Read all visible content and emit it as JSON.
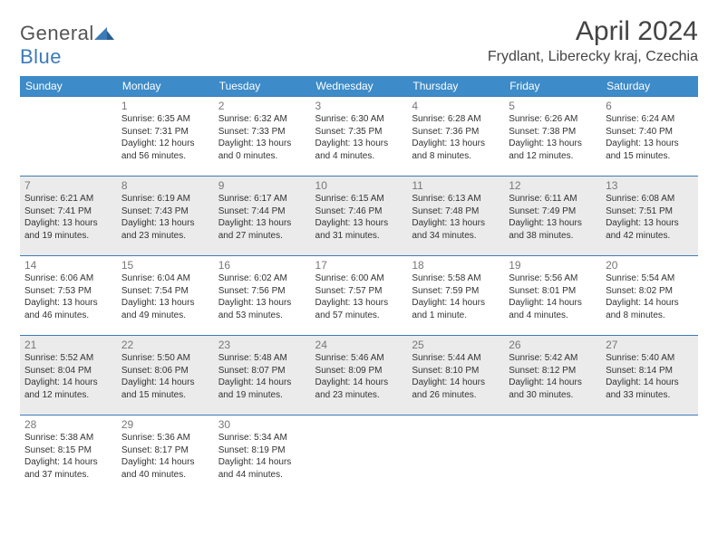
{
  "brand": {
    "part1": "General",
    "part2": "Blue"
  },
  "title": "April 2024",
  "location": "Frydlant, Liberecky kraj, Czechia",
  "colors": {
    "header_bg": "#3d8bc8",
    "header_text": "#ffffff",
    "border": "#3d7bb8",
    "alt_row_bg": "#ebebeb",
    "daynum": "#777777",
    "body_text": "#333333",
    "logo_blue": "#3d7bb8"
  },
  "dayNames": [
    "Sunday",
    "Monday",
    "Tuesday",
    "Wednesday",
    "Thursday",
    "Friday",
    "Saturday"
  ],
  "weeks": [
    [
      {
        "empty": true
      },
      {
        "num": "1",
        "sunrise": "6:35 AM",
        "sunset": "7:31 PM",
        "daylight": "12 hours and 56 minutes."
      },
      {
        "num": "2",
        "sunrise": "6:32 AM",
        "sunset": "7:33 PM",
        "daylight": "13 hours and 0 minutes."
      },
      {
        "num": "3",
        "sunrise": "6:30 AM",
        "sunset": "7:35 PM",
        "daylight": "13 hours and 4 minutes."
      },
      {
        "num": "4",
        "sunrise": "6:28 AM",
        "sunset": "7:36 PM",
        "daylight": "13 hours and 8 minutes."
      },
      {
        "num": "5",
        "sunrise": "6:26 AM",
        "sunset": "7:38 PM",
        "daylight": "13 hours and 12 minutes."
      },
      {
        "num": "6",
        "sunrise": "6:24 AM",
        "sunset": "7:40 PM",
        "daylight": "13 hours and 15 minutes."
      }
    ],
    [
      {
        "num": "7",
        "sunrise": "6:21 AM",
        "sunset": "7:41 PM",
        "daylight": "13 hours and 19 minutes."
      },
      {
        "num": "8",
        "sunrise": "6:19 AM",
        "sunset": "7:43 PM",
        "daylight": "13 hours and 23 minutes."
      },
      {
        "num": "9",
        "sunrise": "6:17 AM",
        "sunset": "7:44 PM",
        "daylight": "13 hours and 27 minutes."
      },
      {
        "num": "10",
        "sunrise": "6:15 AM",
        "sunset": "7:46 PM",
        "daylight": "13 hours and 31 minutes."
      },
      {
        "num": "11",
        "sunrise": "6:13 AM",
        "sunset": "7:48 PM",
        "daylight": "13 hours and 34 minutes."
      },
      {
        "num": "12",
        "sunrise": "6:11 AM",
        "sunset": "7:49 PM",
        "daylight": "13 hours and 38 minutes."
      },
      {
        "num": "13",
        "sunrise": "6:08 AM",
        "sunset": "7:51 PM",
        "daylight": "13 hours and 42 minutes."
      }
    ],
    [
      {
        "num": "14",
        "sunrise": "6:06 AM",
        "sunset": "7:53 PM",
        "daylight": "13 hours and 46 minutes."
      },
      {
        "num": "15",
        "sunrise": "6:04 AM",
        "sunset": "7:54 PM",
        "daylight": "13 hours and 49 minutes."
      },
      {
        "num": "16",
        "sunrise": "6:02 AM",
        "sunset": "7:56 PM",
        "daylight": "13 hours and 53 minutes."
      },
      {
        "num": "17",
        "sunrise": "6:00 AM",
        "sunset": "7:57 PM",
        "daylight": "13 hours and 57 minutes."
      },
      {
        "num": "18",
        "sunrise": "5:58 AM",
        "sunset": "7:59 PM",
        "daylight": "14 hours and 1 minute."
      },
      {
        "num": "19",
        "sunrise": "5:56 AM",
        "sunset": "8:01 PM",
        "daylight": "14 hours and 4 minutes."
      },
      {
        "num": "20",
        "sunrise": "5:54 AM",
        "sunset": "8:02 PM",
        "daylight": "14 hours and 8 minutes."
      }
    ],
    [
      {
        "num": "21",
        "sunrise": "5:52 AM",
        "sunset": "8:04 PM",
        "daylight": "14 hours and 12 minutes."
      },
      {
        "num": "22",
        "sunrise": "5:50 AM",
        "sunset": "8:06 PM",
        "daylight": "14 hours and 15 minutes."
      },
      {
        "num": "23",
        "sunrise": "5:48 AM",
        "sunset": "8:07 PM",
        "daylight": "14 hours and 19 minutes."
      },
      {
        "num": "24",
        "sunrise": "5:46 AM",
        "sunset": "8:09 PM",
        "daylight": "14 hours and 23 minutes."
      },
      {
        "num": "25",
        "sunrise": "5:44 AM",
        "sunset": "8:10 PM",
        "daylight": "14 hours and 26 minutes."
      },
      {
        "num": "26",
        "sunrise": "5:42 AM",
        "sunset": "8:12 PM",
        "daylight": "14 hours and 30 minutes."
      },
      {
        "num": "27",
        "sunrise": "5:40 AM",
        "sunset": "8:14 PM",
        "daylight": "14 hours and 33 minutes."
      }
    ],
    [
      {
        "num": "28",
        "sunrise": "5:38 AM",
        "sunset": "8:15 PM",
        "daylight": "14 hours and 37 minutes."
      },
      {
        "num": "29",
        "sunrise": "5:36 AM",
        "sunset": "8:17 PM",
        "daylight": "14 hours and 40 minutes."
      },
      {
        "num": "30",
        "sunrise": "5:34 AM",
        "sunset": "8:19 PM",
        "daylight": "14 hours and 44 minutes."
      },
      {
        "empty": true
      },
      {
        "empty": true
      },
      {
        "empty": true
      },
      {
        "empty": true
      }
    ]
  ],
  "labels": {
    "sunrise": "Sunrise:",
    "sunset": "Sunset:",
    "daylight": "Daylight:"
  }
}
